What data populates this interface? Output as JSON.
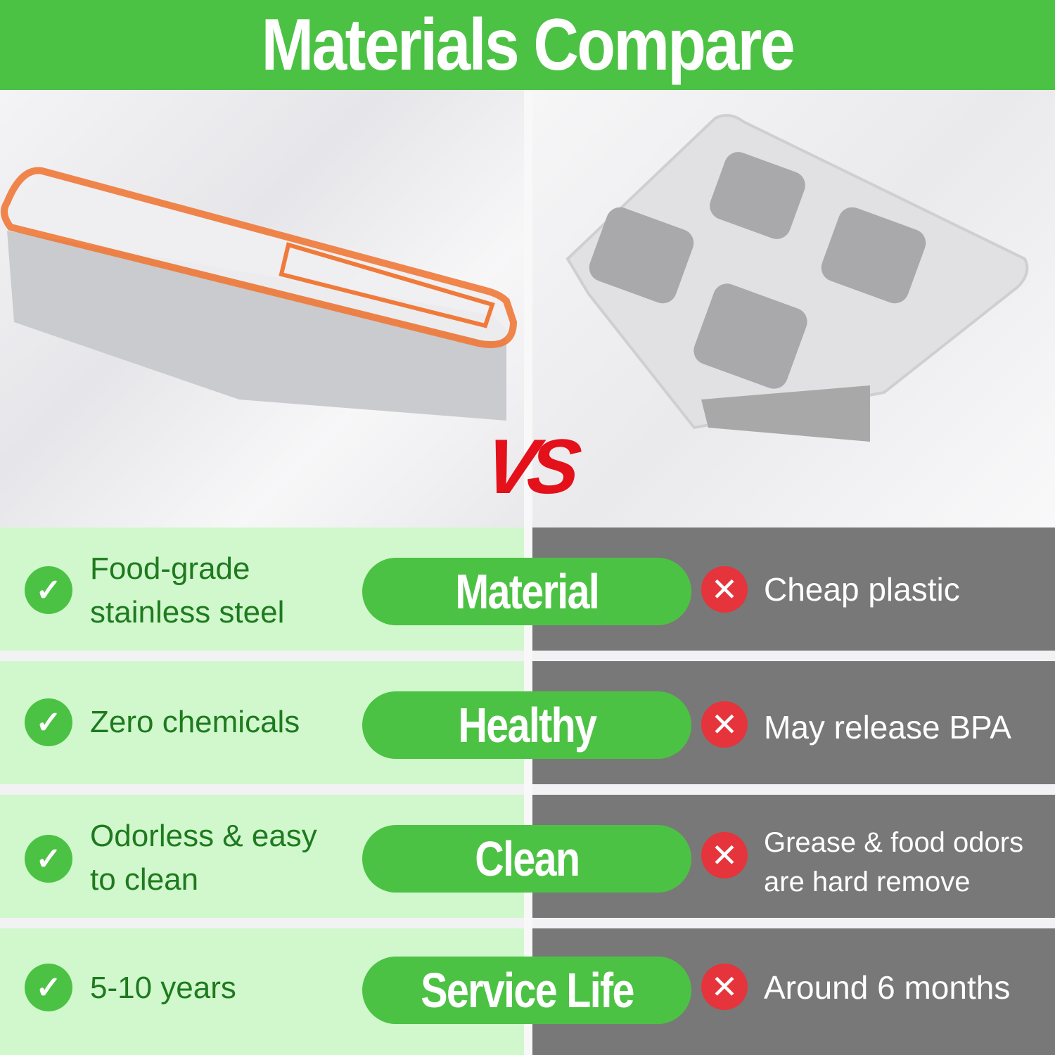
{
  "title": "Materials Compare",
  "vs_label": "VS",
  "colors": {
    "accent_green": "#4cc244",
    "left_panel": "#d0f8cc",
    "right_panel": "#787878",
    "cross_red": "#e5343b",
    "text_green": "#1f7a1f"
  },
  "rows": [
    {
      "category": "Material",
      "good": "Food-grade stainless steel",
      "bad": "Cheap plastic"
    },
    {
      "category": "Healthy",
      "good": "Zero chemicals",
      "bad": "May release BPA"
    },
    {
      "category": "Clean",
      "good": "Odorless & easy to clean",
      "bad": "Grease & food odors are hard remove"
    },
    {
      "category": "Service Life",
      "good": "5-10 years",
      "bad": "Around 6 months"
    }
  ],
  "icons": {
    "good": "check-circle-icon",
    "bad": "x-circle-icon"
  }
}
